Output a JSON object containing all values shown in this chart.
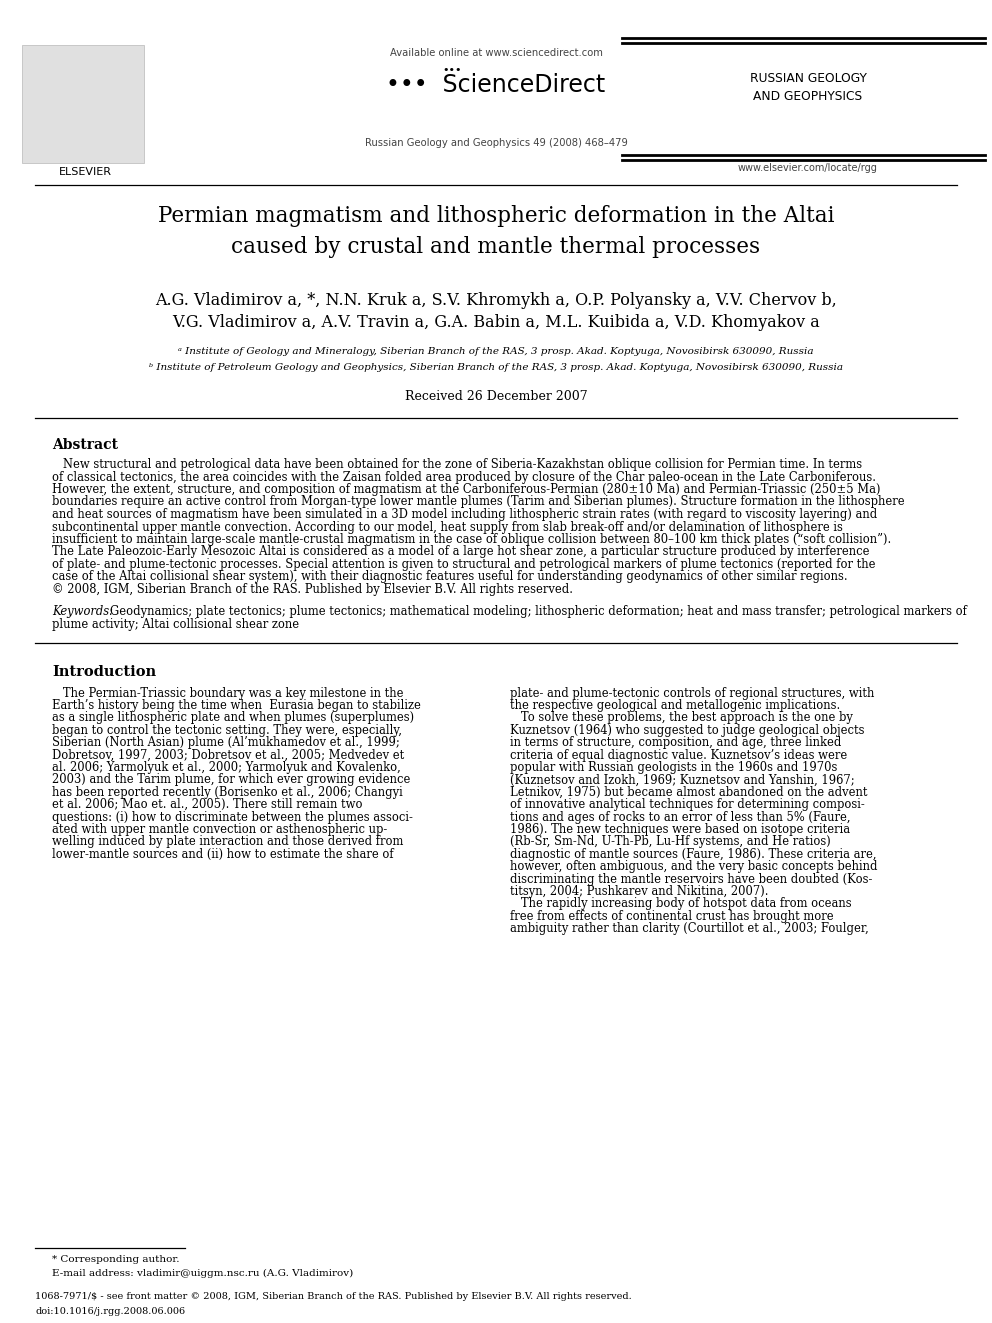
{
  "page_bg": "#ffffff",
  "header": {
    "available_online": "Available online at www.sciencedirect.com",
    "journal_name": "Russian Geology and Geophysics 49 (2008) 468–479",
    "journal_abbr": "RUSSIAN GEOLOGY\nAND GEOPHYSICS",
    "website": "www.elsevier.com/locate/rgg",
    "elsevier_label": "ELSEVIER"
  },
  "title": "Permian magmatism and lithospheric deformation in the Altai\ncaused by crustal and mantle thermal processes",
  "authors_line1": "A.G. Vladimirov a, *, N.N. Kruk a, S.V. Khromykh a, O.P. Polyansky a, V.V. Chervov b,",
  "authors_line2": "V.G. Vladimirov a, A.V. Travin a, G.A. Babin a, M.L. Kuibida a, V.D. Khomyakov a",
  "affil_a": "ᵃ Institute of Geology and Mineralogy, Siberian Branch of the RAS, 3 prosp. Akad. Koptyuga, Novosibirsk 630090, Russia",
  "affil_b": "ᵇ Institute of Petroleum Geology and Geophysics, Siberian Branch of the RAS, 3 prosp. Akad. Koptyuga, Novosibirsk 630090, Russia",
  "received": "Received 26 December 2007",
  "abstract_title": "Abstract",
  "abstract_lines": [
    "   New structural and petrological data have been obtained for the zone of Siberia-Kazakhstan oblique collision for Permian time. In terms",
    "of classical tectonics, the area coincides with the Zaisan folded area produced by closure of the Char paleo-ocean in the Late Carboniferous.",
    "However, the extent, structure, and composition of magmatism at the Carboniferous-Permian (280±10 Ma) and Permian-Triassic (250±5 Ma)",
    "boundaries require an active control from Morgan-type lower mantle plumes (Tarim and Siberian plumes). Structure formation in the lithosphere",
    "and heat sources of magmatism have been simulated in a 3D model including lithospheric strain rates (with regard to viscosity layering) and",
    "subcontinental upper mantle convection. According to our model, heat supply from slab break-off and/or delamination of lithosphere is",
    "insufficient to maintain large-scale mantle-crustal magmatism in the case of oblique collision between 80–100 km thick plates (“soft collision”).",
    "The Late Paleozoic-Early Mesozoic Altai is considered as a model of a large hot shear zone, a particular structure produced by interference",
    "of plate- and plume-tectonic processes. Special attention is given to structural and petrological markers of plume tectonics (reported for the",
    "case of the Altai collisional shear system), with their diagnostic features useful for understanding geodynamics of other similar regions.",
    "© 2008, IGM, Siberian Branch of the RAS. Published by Elsevier B.V. All rights reserved."
  ],
  "keywords_label": "Keywords:",
  "keywords_lines": [
    "Geodynamics; plate tectonics; plume tectonics; mathematical modeling; lithospheric deformation; heat and mass transfer; petrological markers of",
    "plume activity; Altai collisional shear zone"
  ],
  "intro_title": "Introduction",
  "intro_col1_lines": [
    "   The Permian-Triassic boundary was a key milestone in the",
    "Earth’s history being the time when  Eurasia began to stabilize",
    "as a single lithospheric plate and when plumes (superplumes)",
    "began to control the tectonic setting. They were, especially,",
    "Siberian (North Asian) plume (Al’mukhamedov et al., 1999;",
    "Dobretsov, 1997, 2003; Dobretsov et al., 2005; Medvedev et",
    "al. 2006; Yarmolyuk et al., 2000; Yarmolyuk and Kovalenko,",
    "2003) and the Tarim plume, for which ever growing evidence",
    "has been reported recently (Borisenko et al., 2006; Changyi",
    "et al. 2006; Mao et. al., 2005). There still remain two",
    "questions: (i) how to discriminate between the plumes associ-",
    "ated with upper mantle convection or asthenospheric up-",
    "welling induced by plate interaction and those derived from",
    "lower-mantle sources and (ii) how to estimate the share of"
  ],
  "intro_col2_lines": [
    "plate- and plume-tectonic controls of regional structures, with",
    "the respective geological and metallogenic implications.",
    "   To solve these problems, the best approach is the one by",
    "Kuznetsov (1964) who suggested to judge geological objects",
    "in terms of structure, composition, and age, three linked",
    "criteria of equal diagnostic value. Kuznetsov’s ideas were",
    "popular with Russian geologists in the 1960s and 1970s",
    "(Kuznetsov and Izokh, 1969; Kuznetsov and Yanshin, 1967;",
    "Letnikov, 1975) but became almost abandoned on the advent",
    "of innovative analytical techniques for determining composi-",
    "tions and ages of rocks to an error of less than 5% (Faure,",
    "1986). The new techniques were based on isotope criteria",
    "(Rb-Sr, Sm-Nd, U-Th-Pb, Lu-Hf systems, and He ratios)",
    "diagnostic of mantle sources (Faure, 1986). These criteria are,",
    "however, often ambiguous, and the very basic concepts behind",
    "discriminating the mantle reservoirs have been doubted (Kos-",
    "titsyn, 2004; Pushkarev and Nikitina, 2007).",
    "   The rapidly increasing body of hotspot data from oceans",
    "free from effects of continental crust has brought more",
    "ambiguity rather than clarity (Courtillot et al., 2003; Foulger,"
  ],
  "footnote_star": "* Corresponding author.",
  "footnote_email": "E-mail address: vladimir@uiggm.nsc.ru (A.G. Vladimirov)",
  "footer_issn": "1068-7971/$ - see front matter © 2008, IGM, Siberian Branch of the RAS. Published by Elsevier B.V. All rights reserved.",
  "footer_doi": "doi:10.1016/j.rgg.2008.06.006"
}
